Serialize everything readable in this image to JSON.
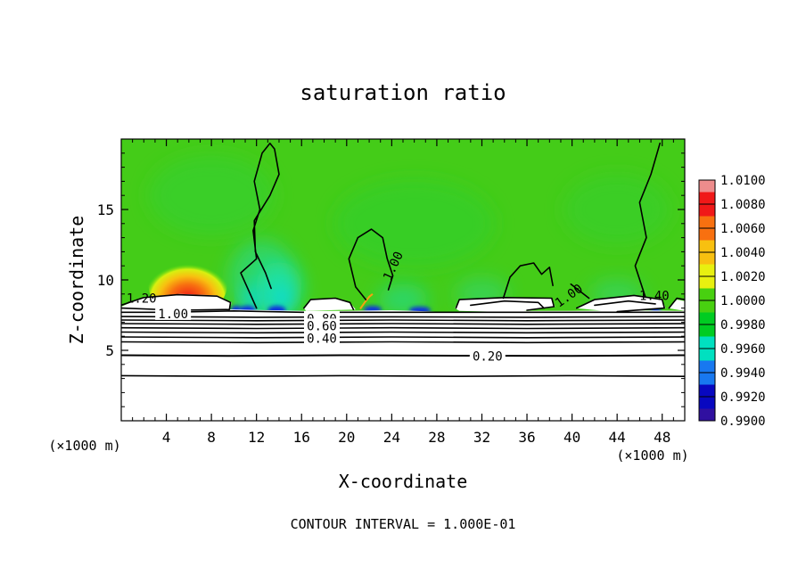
{
  "chart_data": {
    "type": "heatmap",
    "title": "saturation ratio",
    "xlabel": "X-coordinate",
    "ylabel": "Z-coordinate",
    "x_unit": "(×1000 m)",
    "xlim": [
      0,
      50
    ],
    "ylim": [
      0,
      20
    ],
    "xticks": [
      4,
      8,
      12,
      16,
      20,
      24,
      28,
      32,
      36,
      40,
      44,
      48
    ],
    "yticks": [
      5,
      10,
      15
    ],
    "footer": "CONTOUR INTERVAL = 1.000E-01",
    "colorbar": {
      "range": [
        0.99,
        1.01
      ],
      "labels": [
        "1.0100",
        "1.0080",
        "1.0060",
        "1.0040",
        "1.0020",
        "1.0000",
        "0.9980",
        "0.9960",
        "0.9940",
        "0.9920",
        "0.9900"
      ],
      "colors": [
        "#ee8c8c",
        "#f01818",
        "#f87010",
        "#f8c010",
        "#e8f010",
        "#48d010",
        "#00cc22",
        "#00e0c0",
        "#1878f0",
        "#0808c0",
        "#3010a0",
        "#8000a0"
      ]
    },
    "contour_labels": [
      {
        "text": "1.00",
        "x": 24.1,
        "z": 11.0
      },
      {
        "text": "1.00",
        "x": 39.7,
        "z": 8.9
      },
      {
        "text": "1.20",
        "x": 1.8,
        "z": 8.7
      },
      {
        "text": "1.00",
        "x": 4.6,
        "z": 7.6
      },
      {
        "text": "0.20",
        "x": 32.5,
        "z": 4.6
      },
      {
        "text": "0.80",
        "x": 17.8,
        "z": 7.25
      },
      {
        "text": "0.60",
        "x": 17.8,
        "z": 6.75
      },
      {
        "text": "0.40",
        "x": 17.8,
        "z": 5.85
      },
      {
        "text": "1.40",
        "x": 47.3,
        "z": 8.9
      }
    ]
  }
}
